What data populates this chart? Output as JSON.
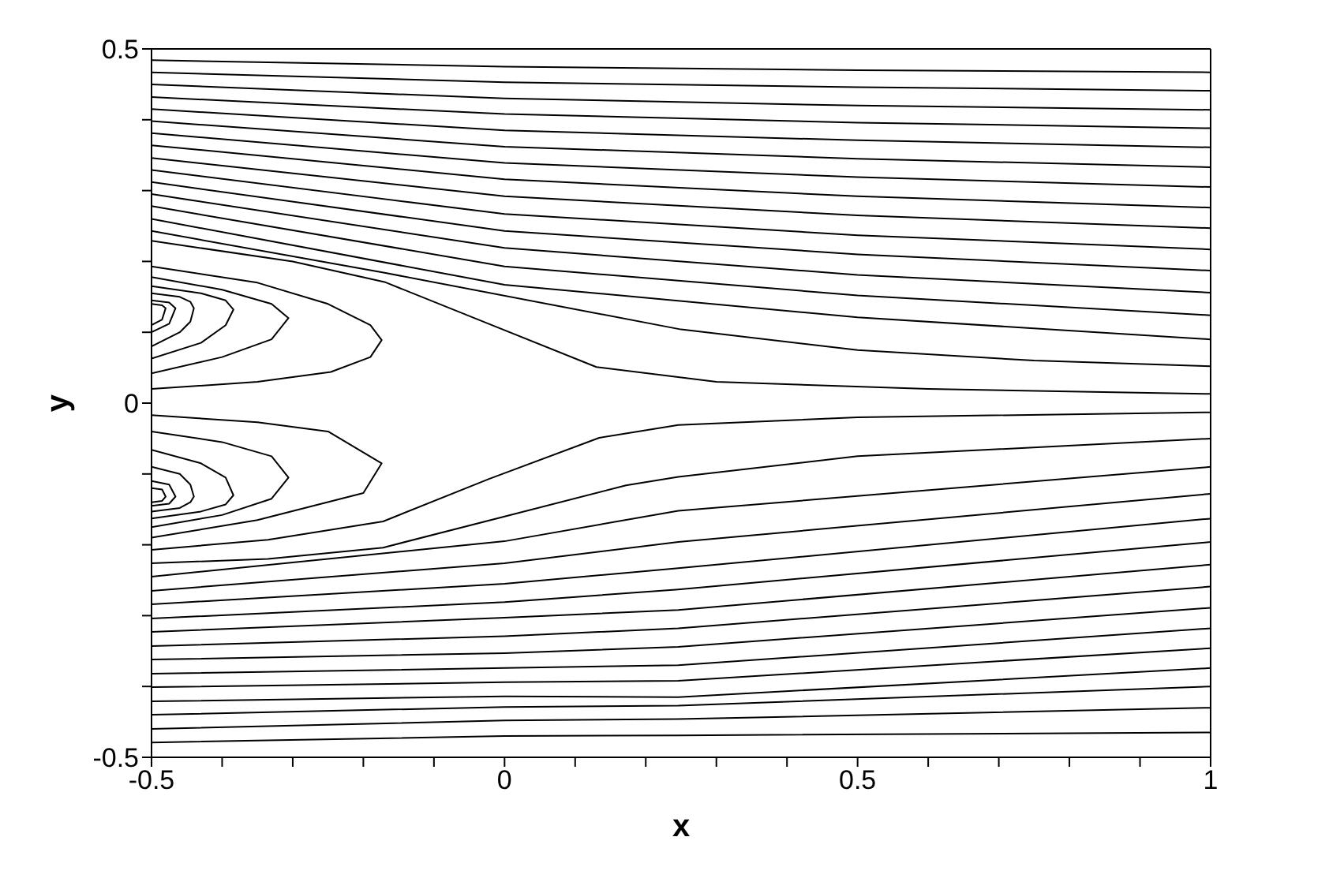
{
  "chart_data": {
    "type": "line",
    "xlabel": "x",
    "ylabel": "y",
    "xlim": [
      -0.5,
      1
    ],
    "ylim": [
      -0.5,
      0.5
    ],
    "xticks": [
      -0.5,
      {
        "value": -0.4,
        "label": null
      },
      {
        "value": -0.3,
        "label": null
      },
      {
        "value": -0.2,
        "label": null
      },
      {
        "value": -0.1,
        "label": null
      },
      0,
      {
        "value": 0.1,
        "label": null
      },
      {
        "value": 0.2,
        "label": null
      },
      {
        "value": 0.3,
        "label": null
      },
      {
        "value": 0.4,
        "label": null
      },
      0.5,
      {
        "value": 0.6,
        "label": null
      },
      {
        "value": 0.7,
        "label": null
      },
      {
        "value": 0.8,
        "label": null
      },
      {
        "value": 0.9,
        "label": null
      },
      1
    ],
    "yticks": [
      -0.5,
      {
        "value": -0.4,
        "label": null
      },
      {
        "value": -0.3,
        "label": null
      },
      {
        "value": -0.2,
        "label": null
      },
      {
        "value": -0.1,
        "label": null
      },
      0,
      {
        "value": 0.1,
        "label": null
      },
      {
        "value": 0.2,
        "label": null
      },
      {
        "value": 0.3,
        "label": null
      },
      {
        "value": 0.4,
        "label": null
      },
      0.5
    ],
    "series": [
      {
        "color": "#000000",
        "x": [
          -0.5,
          0,
          0.5,
          1
        ],
        "values": [
          0.484,
          0.475,
          0.47,
          0.467
        ]
      },
      {
        "color": "#000000",
        "x": [
          -0.5,
          0,
          0.5,
          1
        ],
        "values": [
          0.467,
          0.453,
          0.446,
          0.441
        ]
      },
      {
        "color": "#000000",
        "x": [
          -0.5,
          0,
          0.5,
          1
        ],
        "values": [
          0.45,
          0.43,
          0.42,
          0.414
        ]
      },
      {
        "color": "#000000",
        "x": [
          -0.5,
          0,
          0.5,
          1
        ],
        "values": [
          0.432,
          0.408,
          0.396,
          0.388
        ]
      },
      {
        "color": "#000000",
        "x": [
          -0.5,
          0,
          0.5,
          1
        ],
        "values": [
          0.415,
          0.385,
          0.371,
          0.361
        ]
      },
      {
        "color": "#000000",
        "x": [
          -0.5,
          0,
          0.5,
          1
        ],
        "values": [
          0.398,
          0.362,
          0.345,
          0.333
        ]
      },
      {
        "color": "#000000",
        "x": [
          -0.5,
          0,
          0.5,
          1
        ],
        "values": [
          0.381,
          0.339,
          0.319,
          0.305
        ]
      },
      {
        "color": "#000000",
        "x": [
          -0.5,
          0,
          0.5,
          1
        ],
        "values": [
          0.364,
          0.316,
          0.292,
          0.276
        ]
      },
      {
        "color": "#000000",
        "x": [
          -0.5,
          0,
          0.5,
          1
        ],
        "values": [
          0.346,
          0.292,
          0.265,
          0.247
        ]
      },
      {
        "color": "#000000",
        "x": [
          -0.5,
          0,
          0.5,
          1
        ],
        "values": [
          0.329,
          0.267,
          0.237,
          0.217
        ]
      },
      {
        "color": "#000000",
        "x": [
          -0.5,
          0,
          0.5,
          1
        ],
        "values": [
          0.312,
          0.243,
          0.21,
          0.187
        ]
      },
      {
        "color": "#000000",
        "x": [
          -0.5,
          0,
          0.5,
          1
        ],
        "values": [
          0.295,
          0.219,
          0.181,
          0.156
        ]
      },
      {
        "color": "#000000",
        "x": [
          -0.5,
          0,
          0.5,
          1
        ],
        "values": [
          0.278,
          0.193,
          0.152,
          0.124
        ]
      },
      {
        "color": "#000000",
        "x": [
          -0.5,
          0,
          0.5,
          1
        ],
        "values": [
          0.26,
          0.167,
          0.121,
          0.09
        ]
      },
      {
        "color": "#000000",
        "x": [
          -0.5,
          -0.17,
          0.25,
          0.5,
          0.75,
          1
        ],
        "values": [
          0.243,
          0.184,
          0.104,
          0.075,
          0.06,
          0.052
        ]
      },
      {
        "color": "#000000",
        "x": [
          -0.5,
          -0.3,
          -0.17,
          -0.02,
          0.13,
          0.3,
          0.6,
          1
        ],
        "values": [
          0.229,
          0.2,
          0.171,
          0.111,
          0.051,
          0.03,
          0.02,
          0.013
        ]
      },
      {
        "color": "#000000",
        "x": [
          -0.5,
          -0.35,
          -0.25,
          -0.19,
          -0.174,
          -0.19,
          -0.246,
          -0.35,
          -0.5
        ],
        "values": [
          0.193,
          0.17,
          0.14,
          0.11,
          0.089,
          0.065,
          0.044,
          0.03,
          0.02
        ]
      },
      {
        "color": "#000000",
        "x": [
          -0.5,
          -0.4,
          -0.33,
          -0.306,
          -0.33,
          -0.4,
          -0.5
        ],
        "values": [
          0.178,
          0.16,
          0.14,
          0.12,
          0.09,
          0.065,
          0.042
        ]
      },
      {
        "color": "#000000",
        "x": [
          -0.5,
          -0.43,
          -0.395,
          -0.384,
          -0.395,
          -0.43,
          -0.5
        ],
        "values": [
          0.165,
          0.155,
          0.145,
          0.132,
          0.11,
          0.085,
          0.063
        ]
      },
      {
        "color": "#000000",
        "x": [
          -0.5,
          -0.46,
          -0.445,
          -0.44,
          -0.445,
          -0.46,
          -0.5
        ],
        "values": [
          0.155,
          0.15,
          0.143,
          0.134,
          0.115,
          0.1,
          0.08
        ]
      },
      {
        "color": "#000000",
        "x": [
          -0.5,
          -0.475,
          -0.466,
          -0.475,
          -0.5
        ],
        "values": [
          0.145,
          0.142,
          0.134,
          0.112,
          0.1
        ]
      },
      {
        "color": "#000000",
        "x": [
          -0.5,
          -0.485,
          -0.48,
          -0.485,
          -0.5
        ],
        "values": [
          0.14,
          0.138,
          0.134,
          0.118,
          0.11
        ]
      },
      {
        "color": "#000000",
        "x": [
          -0.5,
          -0.335,
          -0.172,
          -0.022,
          0.134,
          0.246,
          0.5,
          1
        ],
        "values": [
          -0.207,
          -0.193,
          -0.167,
          -0.107,
          -0.049,
          -0.031,
          -0.02,
          -0.013
        ]
      },
      {
        "color": "#000000",
        "x": [
          -0.5,
          -0.335,
          -0.172,
          0,
          0.172,
          0.246,
          0.5,
          1
        ],
        "values": [
          -0.226,
          -0.22,
          -0.204,
          -0.16,
          -0.116,
          -0.104,
          -0.075,
          -0.05
        ]
      },
      {
        "color": "#000000",
        "x": [
          -0.5,
          0,
          0.246,
          1
        ],
        "values": [
          -0.245,
          -0.195,
          -0.152,
          -0.09
        ]
      },
      {
        "color": "#000000",
        "x": [
          -0.5,
          0,
          0.246,
          1
        ],
        "values": [
          -0.265,
          -0.226,
          -0.196,
          -0.128
        ]
      },
      {
        "color": "#000000",
        "x": [
          -0.5,
          0,
          0.246,
          1
        ],
        "values": [
          -0.284,
          -0.255,
          -0.233,
          -0.163
        ]
      },
      {
        "color": "#000000",
        "x": [
          -0.5,
          0,
          0.246,
          1
        ],
        "values": [
          -0.304,
          -0.281,
          -0.263,
          -0.196
        ]
      },
      {
        "color": "#000000",
        "x": [
          -0.5,
          0,
          0.246,
          1
        ],
        "values": [
          -0.323,
          -0.303,
          -0.292,
          -0.228
        ]
      },
      {
        "color": "#000000",
        "x": [
          -0.5,
          0,
          0.246,
          1
        ],
        "values": [
          -0.343,
          -0.329,
          -0.318,
          -0.259
        ]
      },
      {
        "color": "#000000",
        "x": [
          -0.5,
          0,
          0.246,
          1
        ],
        "values": [
          -0.362,
          -0.353,
          -0.344,
          -0.289
        ]
      },
      {
        "color": "#000000",
        "x": [
          -0.5,
          0,
          0.246,
          1
        ],
        "values": [
          -0.382,
          -0.374,
          -0.37,
          -0.318
        ]
      },
      {
        "color": "#000000",
        "x": [
          -0.5,
          0,
          0.246,
          1
        ],
        "values": [
          -0.401,
          -0.394,
          -0.392,
          -0.346
        ]
      },
      {
        "color": "#000000",
        "x": [
          -0.5,
          0,
          0.246,
          1
        ],
        "values": [
          -0.421,
          -0.414,
          -0.415,
          -0.374
        ]
      },
      {
        "color": "#000000",
        "x": [
          -0.5,
          0,
          0.246,
          1
        ],
        "values": [
          -0.44,
          -0.429,
          -0.427,
          -0.4
        ]
      },
      {
        "color": "#000000",
        "x": [
          -0.5,
          0,
          0.246,
          1
        ],
        "values": [
          -0.46,
          -0.448,
          -0.446,
          -0.43
        ]
      },
      {
        "color": "#000000",
        "x": [
          -0.5,
          0,
          0.246,
          1
        ],
        "values": [
          -0.479,
          -0.47,
          -0.469,
          -0.465
        ]
      },
      {
        "color": "#000000",
        "x": [
          -0.5,
          -0.35,
          -0.2,
          -0.174,
          -0.25,
          -0.35,
          -0.5
        ],
        "values": [
          -0.19,
          -0.165,
          -0.127,
          -0.085,
          -0.04,
          -0.027,
          -0.017
        ]
      },
      {
        "color": "#000000",
        "x": [
          -0.5,
          -0.4,
          -0.33,
          -0.306,
          -0.33,
          -0.4,
          -0.5
        ],
        "values": [
          -0.175,
          -0.158,
          -0.135,
          -0.105,
          -0.075,
          -0.055,
          -0.04
        ]
      },
      {
        "color": "#000000",
        "x": [
          -0.5,
          -0.43,
          -0.395,
          -0.384,
          -0.395,
          -0.43,
          -0.5
        ],
        "values": [
          -0.163,
          -0.153,
          -0.143,
          -0.13,
          -0.105,
          -0.085,
          -0.066
        ]
      },
      {
        "color": "#000000",
        "x": [
          -0.5,
          -0.46,
          -0.445,
          -0.44,
          -0.445,
          -0.46,
          -0.5
        ],
        "values": [
          -0.153,
          -0.148,
          -0.14,
          -0.132,
          -0.115,
          -0.1,
          -0.09
        ]
      },
      {
        "color": "#000000",
        "x": [
          -0.5,
          -0.475,
          -0.466,
          -0.475,
          -0.5
        ],
        "values": [
          -0.145,
          -0.142,
          -0.132,
          -0.115,
          -0.11
        ]
      },
      {
        "color": "#000000",
        "x": [
          -0.5,
          -0.485,
          -0.48,
          -0.485,
          -0.5
        ],
        "values": [
          -0.14,
          -0.138,
          -0.132,
          -0.122,
          -0.12
        ]
      }
    ]
  }
}
